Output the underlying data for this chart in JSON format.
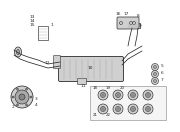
{
  "background_color": "#ffffff",
  "line_color": "#2a2a2a",
  "part_color": "#555555",
  "label_color": "#111111",
  "label_fontsize": 3.2,
  "fg": "#222222",
  "gray_light": "#d0d0d0",
  "gray_med": "#aaaaaa",
  "gray_dark": "#888888"
}
